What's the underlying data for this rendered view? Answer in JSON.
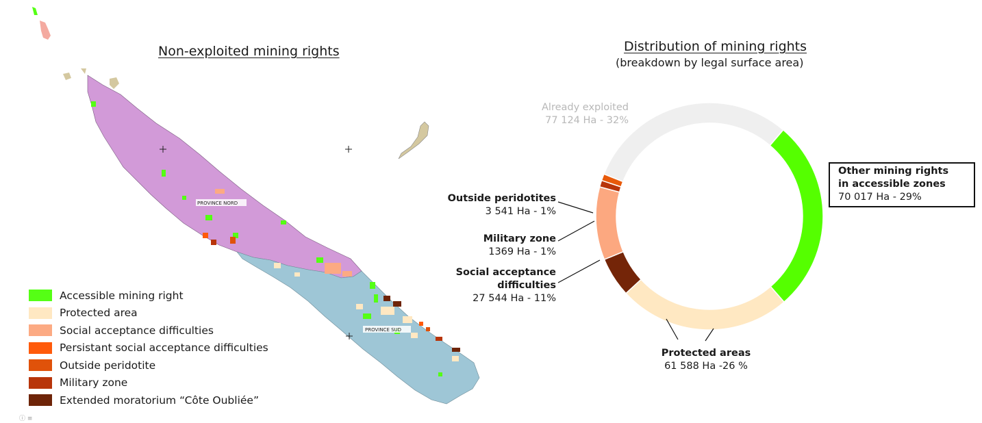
{
  "map": {
    "title": "Non-exploited mining rights",
    "region_labels": [
      "PROVINCE NORD",
      "PROVINCE SUD"
    ],
    "legend": [
      {
        "label": "Accessible mining right",
        "color": "#55ff15"
      },
      {
        "label": "Protected area",
        "color": "#ffe8c2"
      },
      {
        "label": "Social acceptance difficulties",
        "color": "#fcaa83"
      },
      {
        "label": "Persistant social acceptance difficulties",
        "color": "#ff5a0a"
      },
      {
        "label": "Outside peridotite",
        "color": "#e0520a"
      },
      {
        "label": "Military zone",
        "color": "#b8350a"
      },
      {
        "label": "Extended moratorium “Côte Oubliée”",
        "color": "#6e2408"
      }
    ],
    "colors": {
      "province_nord": "#d29ad8",
      "province_sud": "#9ec6d6",
      "islands": "#d4c8a0",
      "island_north": "#f4aaa0"
    }
  },
  "chart_data": {
    "type": "pie",
    "title": "Distribution of mining rights",
    "subtitle": "(breakdown by legal surface area)",
    "slices": [
      {
        "name": "Already exploited",
        "area": "77 124 Ha - 32%",
        "value": 32,
        "color": "#efefef"
      },
      {
        "name": "Other mining rights in accessible zones",
        "name_lines": [
          "Other mining rights",
          "in accessible zones"
        ],
        "area": "70 017 Ha - 29%",
        "value": 29,
        "color": "#55ff00"
      },
      {
        "name": "Protected areas",
        "area": "61 588 Ha -26 %",
        "value": 26,
        "color": "#ffe8c2"
      },
      {
        "name": "Côte Oubliée",
        "area": "",
        "value": 6,
        "color": "#742508"
      },
      {
        "name": "Social acceptance difficulties",
        "name_lines": [
          "Social acceptance",
          "difficulties"
        ],
        "area": "27 544 Ha - 11%",
        "value": 11,
        "color": "#fca880"
      },
      {
        "name": "Military zone",
        "area": "1369 Ha - 1%",
        "value": 1,
        "color": "#b8350a"
      },
      {
        "name": "Outside peridotites",
        "area": "3 541 Ha - 1%",
        "value": 1,
        "color": "#e85a0a"
      }
    ]
  },
  "footer": {
    "mark": "ⓘ ≡"
  }
}
